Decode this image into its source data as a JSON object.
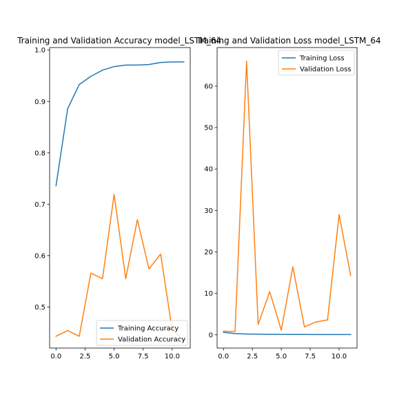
{
  "chart_data": [
    {
      "type": "line",
      "title": "Training and Validation Accuracy model_LSTM_64",
      "xlabel": "",
      "ylabel": "",
      "xlim": [
        -0.55,
        11.55
      ],
      "ylim": [
        0.42,
        1.005
      ],
      "xticks": [
        0.0,
        2.5,
        5.0,
        7.5,
        10.0
      ],
      "xtick_labels": [
        "0.0",
        "2.5",
        "5.0",
        "7.5",
        "10.0"
      ],
      "yticks": [
        0.5,
        0.6,
        0.7,
        0.8,
        0.9,
        1.0
      ],
      "ytick_labels": [
        "0.5",
        "0.6",
        "0.7",
        "0.8",
        "0.9",
        "1.0"
      ],
      "grid": false,
      "legend_position": "lower-right",
      "series": [
        {
          "name": "Training Accuracy",
          "color": "#1f77b4",
          "x": [
            0,
            1,
            2,
            3,
            4,
            5,
            6,
            7,
            8,
            9,
            10,
            11
          ],
          "values": [
            0.736,
            0.886,
            0.933,
            0.949,
            0.961,
            0.968,
            0.971,
            0.971,
            0.972,
            0.976,
            0.977,
            0.977
          ]
        },
        {
          "name": "Validation Accuracy",
          "color": "#ff7f0e",
          "x": [
            0,
            1,
            2,
            3,
            4,
            5,
            6,
            7,
            8,
            9,
            10,
            11
          ],
          "values": [
            0.443,
            0.454,
            0.443,
            0.566,
            0.555,
            0.719,
            0.555,
            0.67,
            0.574,
            0.603,
            0.455,
            0.435
          ]
        }
      ]
    },
    {
      "type": "line",
      "title": "Training and Validation Loss model_LSTM_64",
      "xlabel": "",
      "ylabel": "",
      "xlim": [
        -0.55,
        11.55
      ],
      "ylim": [
        -3.2,
        69.3
      ],
      "xticks": [
        0.0,
        2.5,
        5.0,
        7.5,
        10.0
      ],
      "xtick_labels": [
        "0.0",
        "2.5",
        "5.0",
        "7.5",
        "10.0"
      ],
      "yticks": [
        0,
        10,
        20,
        30,
        40,
        50,
        60
      ],
      "ytick_labels": [
        "0",
        "10",
        "20",
        "30",
        "40",
        "50",
        "60"
      ],
      "grid": false,
      "legend_position": "top-right",
      "series": [
        {
          "name": "Training Loss",
          "color": "#1f77b4",
          "x": [
            0,
            1,
            2,
            3,
            4,
            5,
            6,
            7,
            8,
            9,
            10,
            11
          ],
          "values": [
            0.6,
            0.3,
            0.18,
            0.14,
            0.11,
            0.09,
            0.08,
            0.08,
            0.07,
            0.06,
            0.06,
            0.06
          ]
        },
        {
          "name": "Validation Loss",
          "color": "#ff7f0e",
          "x": [
            0,
            1,
            2,
            3,
            4,
            5,
            6,
            7,
            8,
            9,
            10,
            11
          ],
          "values": [
            0.9,
            0.8,
            66.0,
            2.5,
            10.4,
            1.1,
            16.4,
            1.9,
            3.1,
            3.6,
            29.0,
            14.3
          ]
        }
      ]
    }
  ]
}
